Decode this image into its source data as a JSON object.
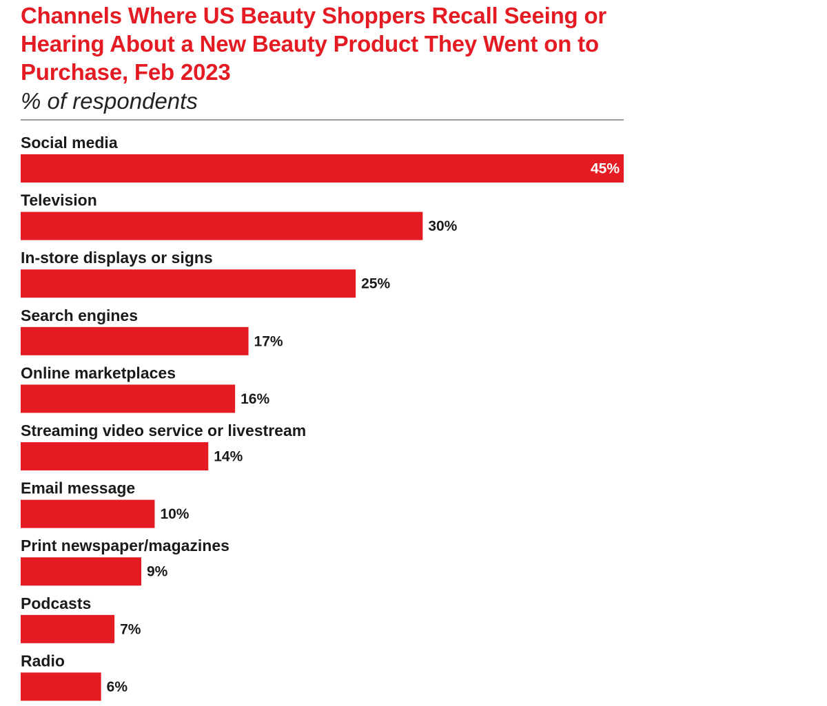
{
  "colors": {
    "accent": "#e41b23",
    "text": "#1a1a1a",
    "inside_label": "#ffffff",
    "outside_label": "#1a1a1a"
  },
  "chart_data": {
    "type": "bar",
    "orientation": "horizontal",
    "title": "Channels Where US Beauty Shoppers Recall Seeing or Hearing About a New Beauty Product They Went on to Purchase, Feb 2023",
    "subtitle": "% of respondents",
    "xlabel": "",
    "ylabel": "",
    "xlim": [
      0,
      45
    ],
    "grid": false,
    "legend": "none",
    "categories": [
      "Social media",
      "Television",
      "In-store displays or signs",
      "Search engines",
      "Online marketplaces",
      "Streaming video service or livestream",
      "Email message",
      "Print newspaper/magazines",
      "Podcasts",
      "Radio"
    ],
    "values": [
      45,
      30,
      25,
      17,
      16,
      14,
      10,
      9,
      7,
      6
    ],
    "value_labels": [
      "45%",
      "30%",
      "25%",
      "17%",
      "16%",
      "14%",
      "10%",
      "9%",
      "7%",
      "6%"
    ]
  }
}
